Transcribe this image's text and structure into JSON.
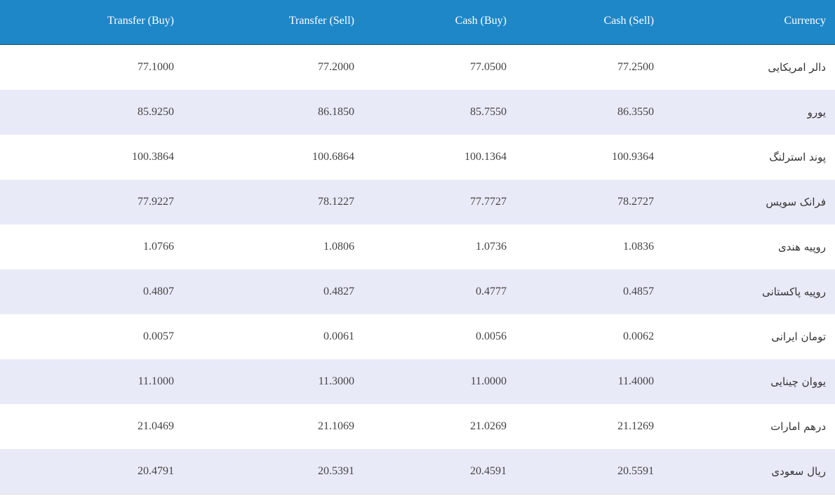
{
  "table": {
    "header": [
      "Transfer (Buy)",
      "Transfer (Sell)",
      "Cash (Buy)",
      "Cash (Sell)",
      "Currency"
    ],
    "rows": [
      [
        "77.1000",
        "77.2000",
        "77.0500",
        "77.2500",
        "دالر امریکایی"
      ],
      [
        "85.9250",
        "86.1850",
        "85.7550",
        "86.3550",
        "یورو"
      ],
      [
        "100.3864",
        "100.6864",
        "100.1364",
        "100.9364",
        "پوند استرلنگ"
      ],
      [
        "77.9227",
        "78.1227",
        "77.7727",
        "78.2727",
        "فرانک سویس"
      ],
      [
        "1.0766",
        "1.0806",
        "1.0736",
        "1.0836",
        "روپیه هندی"
      ],
      [
        "0.4807",
        "0.4827",
        "0.4777",
        "0.4857",
        "روپیه پاکستانی"
      ],
      [
        "0.0057",
        "0.0061",
        "0.0056",
        "0.0062",
        "تومان ایرانی"
      ],
      [
        "11.1000",
        "11.3000",
        "11.0000",
        "11.4000",
        "یووان چینایی"
      ],
      [
        "21.0469",
        "21.1069",
        "21.0269",
        "21.1269",
        "درهم امارات"
      ],
      [
        "20.4791",
        "20.5391",
        "20.4591",
        "20.5591",
        "ریال سعودی"
      ]
    ]
  }
}
